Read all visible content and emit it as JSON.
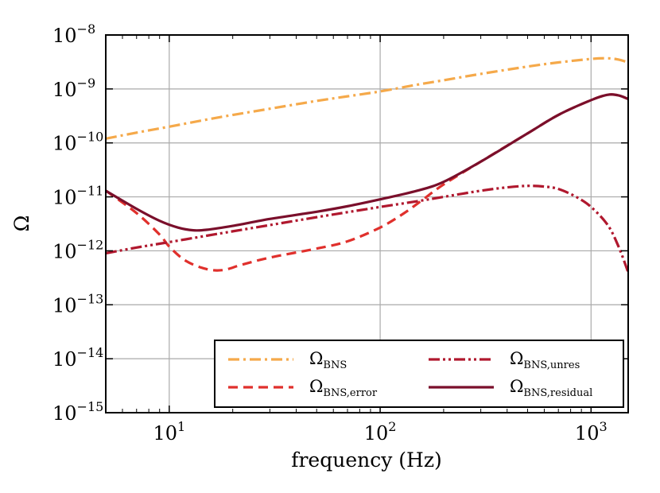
{
  "chart_data": {
    "type": "line",
    "xscale": "log",
    "yscale": "log",
    "xlabel": "frequency (Hz)",
    "ylabel": "Ω",
    "xlim": [
      5,
      1500
    ],
    "ylim": [
      1e-15,
      1e-08
    ],
    "grid": true,
    "legend_position": "bottom-right",
    "x_ticks": [
      {
        "value": 10,
        "base": "10",
        "exp": "1"
      },
      {
        "value": 100,
        "base": "10",
        "exp": "2"
      },
      {
        "value": 1000,
        "base": "10",
        "exp": "3"
      }
    ],
    "y_ticks": [
      {
        "value": 1e-08,
        "base": "10",
        "exp": "−8"
      },
      {
        "value": 1e-09,
        "base": "10",
        "exp": "−9"
      },
      {
        "value": 1e-10,
        "base": "10",
        "exp": "−10"
      },
      {
        "value": 1e-11,
        "base": "10",
        "exp": "−11"
      },
      {
        "value": 1e-12,
        "base": "10",
        "exp": "−12"
      },
      {
        "value": 1e-13,
        "base": "10",
        "exp": "−13"
      },
      {
        "value": 1e-14,
        "base": "10",
        "exp": "−14"
      },
      {
        "value": 1e-15,
        "base": "10",
        "exp": "−15"
      }
    ],
    "series": [
      {
        "name": "Ω_BNS",
        "label_main": "Ω",
        "label_sub": "BNS",
        "color": "#f5a94a",
        "style": "dashdot",
        "x": [
          5,
          7,
          10,
          15,
          20,
          30,
          50,
          70,
          100,
          150,
          200,
          300,
          500,
          700,
          1000,
          1200,
          1350,
          1500
        ],
        "y": [
          1.2e-10,
          1.55e-10,
          2e-10,
          2.7e-10,
          3.3e-10,
          4.3e-10,
          6e-10,
          7.3e-10,
          9e-10,
          1.2e-09,
          1.45e-09,
          1.9e-09,
          2.6e-09,
          3.1e-09,
          3.6e-09,
          3.7e-09,
          3.5e-09,
          3.1e-09
        ]
      },
      {
        "name": "Ω_BNS,error",
        "label_main": "Ω",
        "label_sub": "BNS,error",
        "color": "#e0302c",
        "style": "dashed",
        "x": [
          5,
          7,
          9,
          10,
          12,
          15,
          18,
          22,
          30,
          50,
          70,
          100,
          130,
          160,
          200,
          300,
          500,
          700,
          1000,
          1200,
          1350,
          1500
        ],
        "y": [
          1.3e-11,
          5e-12,
          2e-12,
          1.2e-12,
          6.5e-13,
          4.6e-13,
          4.4e-13,
          5.5e-13,
          7.5e-13,
          1.1e-12,
          1.5e-12,
          2.7e-12,
          5e-12,
          9e-12,
          1.7e-11,
          4.5e-11,
          1.5e-10,
          3.3e-10,
          6.2e-10,
          7.8e-10,
          7.6e-10,
          6.5e-10
        ]
      },
      {
        "name": "Ω_BNS,unres",
        "label_main": "Ω",
        "label_sub": "BNS,unres",
        "color": "#b0182e",
        "style": "dashdotdot",
        "x": [
          5,
          7,
          10,
          15,
          20,
          30,
          50,
          70,
          100,
          150,
          200,
          300,
          400,
          500,
          600,
          700,
          850,
          1000,
          1200,
          1350,
          1500
        ],
        "y": [
          9e-13,
          1.15e-12,
          1.45e-12,
          1.9e-12,
          2.3e-12,
          3e-12,
          4.2e-12,
          5.2e-12,
          6.5e-12,
          8.3e-12,
          1e-11,
          1.3e-11,
          1.5e-11,
          1.6e-11,
          1.55e-11,
          1.4e-11,
          1e-11,
          6.5e-12,
          3e-12,
          1.2e-12,
          4e-13
        ]
      },
      {
        "name": "Ω_BNS,residual",
        "label_main": "Ω",
        "label_sub": "BNS,residual",
        "color": "#7a0f2b",
        "style": "solid",
        "x": [
          5,
          7,
          9,
          11,
          13,
          15,
          20,
          30,
          50,
          70,
          100,
          150,
          200,
          300,
          500,
          700,
          1000,
          1200,
          1350,
          1500
        ],
        "y": [
          1.3e-11,
          6e-12,
          3.6e-12,
          2.7e-12,
          2.4e-12,
          2.45e-12,
          2.9e-12,
          3.9e-12,
          5.3e-12,
          6.7e-12,
          9e-12,
          1.3e-11,
          1.9e-11,
          4.5e-11,
          1.5e-10,
          3.3e-10,
          6.2e-10,
          7.8e-10,
          7.6e-10,
          6.5e-10
        ]
      }
    ]
  }
}
